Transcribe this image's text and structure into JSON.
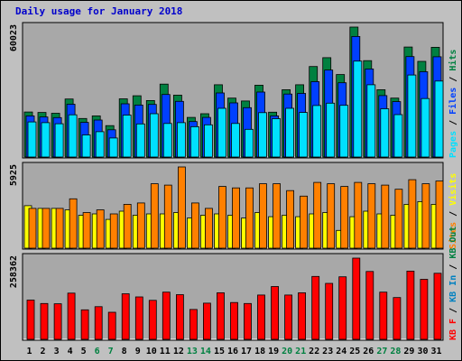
{
  "title": "Daily usage for January 2018",
  "colors": {
    "hits": "#008040",
    "files": "#0040ff",
    "pages": "#00e0ff",
    "visits": "#ffff00",
    "sites": "#ff8000",
    "kbin": "#0080c0",
    "kbf": "#ff0000",
    "background": "#c0c0c0",
    "plot": "#a8a8a8"
  },
  "chart_data": [
    {
      "type": "bar",
      "panel": "hits-files-pages",
      "ymax_label": "60023",
      "ylim": [
        0,
        60023
      ],
      "categories": [
        "1",
        "2",
        "3",
        "4",
        "5",
        "6",
        "7",
        "8",
        "9",
        "10",
        "11",
        "12",
        "13",
        "14",
        "15",
        "16",
        "17",
        "18",
        "19",
        "20",
        "21",
        "22",
        "23",
        "24",
        "25",
        "26",
        "27",
        "28",
        "29",
        "30",
        "31"
      ],
      "weekend_days": [
        "6",
        "7",
        "13",
        "14",
        "20",
        "21",
        "27",
        "28"
      ],
      "legend": [
        "Pages",
        "/",
        "Files",
        "/",
        "Hits"
      ],
      "series": [
        {
          "name": "Hits",
          "values": [
            20800,
            20600,
            20200,
            26800,
            17800,
            19000,
            14500,
            26900,
            28300,
            26100,
            33700,
            28600,
            18300,
            20000,
            33400,
            27200,
            25900,
            33200,
            20700,
            31100,
            33400,
            41800,
            45900,
            38100,
            60023,
            44500,
            31100,
            27200,
            50800,
            44200,
            50700
          ]
        },
        {
          "name": "Files",
          "values": [
            19000,
            18500,
            18200,
            24400,
            16000,
            17100,
            12600,
            24600,
            24000,
            24300,
            28900,
            25700,
            16400,
            18300,
            29600,
            25000,
            22800,
            30000,
            19000,
            29100,
            29400,
            34800,
            40200,
            34300,
            55700,
            40700,
            28400,
            25600,
            46400,
            39400,
            46300
          ]
        },
        {
          "name": "Pages",
          "values": [
            16200,
            15900,
            15400,
            19500,
            10200,
            11700,
            8800,
            19400,
            15300,
            20000,
            15500,
            15900,
            14000,
            14900,
            22500,
            15500,
            12800,
            20500,
            17700,
            22500,
            20600,
            23800,
            24900,
            23900,
            44300,
            33400,
            22300,
            19600,
            37900,
            27000,
            35100
          ]
        }
      ]
    },
    {
      "type": "bar",
      "panel": "visits-sites",
      "ymax_label": "5925",
      "ylim": [
        0,
        5925
      ],
      "categories": [
        "1",
        "2",
        "3",
        "4",
        "5",
        "6",
        "7",
        "8",
        "9",
        "10",
        "11",
        "12",
        "13",
        "14",
        "15",
        "16",
        "17",
        "18",
        "19",
        "20",
        "21",
        "22",
        "23",
        "24",
        "25",
        "26",
        "27",
        "28",
        "29",
        "30",
        "31"
      ],
      "legend": [
        "Sites",
        "/",
        "Visits"
      ],
      "series": [
        {
          "name": "Visits",
          "values": [
            3100,
            2900,
            2900,
            2800,
            2400,
            2500,
            2100,
            2700,
            2400,
            2500,
            2500,
            2600,
            2200,
            2400,
            2500,
            2400,
            2200,
            2600,
            2300,
            2400,
            2300,
            2500,
            2600,
            1300,
            2300,
            2700,
            2500,
            2400,
            3200,
            3400,
            3200
          ]
        },
        {
          "name": "Sites",
          "values": [
            2900,
            2900,
            2900,
            3600,
            2600,
            2800,
            2500,
            3200,
            3300,
            4700,
            4600,
            5925,
            3300,
            2900,
            4500,
            4400,
            4400,
            4700,
            4700,
            4200,
            3800,
            4800,
            4700,
            4500,
            4800,
            4700,
            4600,
            4300,
            5000,
            4700,
            4900
          ]
        }
      ]
    },
    {
      "type": "bar",
      "panel": "kbin-kbf",
      "ymax_label": "258362",
      "ylim": [
        0,
        258362
      ],
      "categories": [
        "1",
        "2",
        "3",
        "4",
        "5",
        "6",
        "7",
        "8",
        "9",
        "10",
        "11",
        "12",
        "13",
        "14",
        "15",
        "16",
        "17",
        "18",
        "19",
        "20",
        "21",
        "22",
        "23",
        "24",
        "25",
        "26",
        "27",
        "28",
        "29",
        "30",
        "31"
      ],
      "legend": [
        "KB F",
        "/",
        "KB In",
        "/",
        "KB Out"
      ],
      "series": [
        {
          "name": "KB F",
          "values": [
            125000,
            114000,
            113000,
            147000,
            94000,
            104000,
            86000,
            145000,
            135000,
            124000,
            150000,
            142000,
            95000,
            115000,
            148000,
            117000,
            114000,
            141000,
            168000,
            141000,
            148000,
            200000,
            178000,
            199000,
            258362,
            216000,
            150000,
            133000,
            217000,
            191000,
            210000
          ]
        }
      ]
    }
  ]
}
